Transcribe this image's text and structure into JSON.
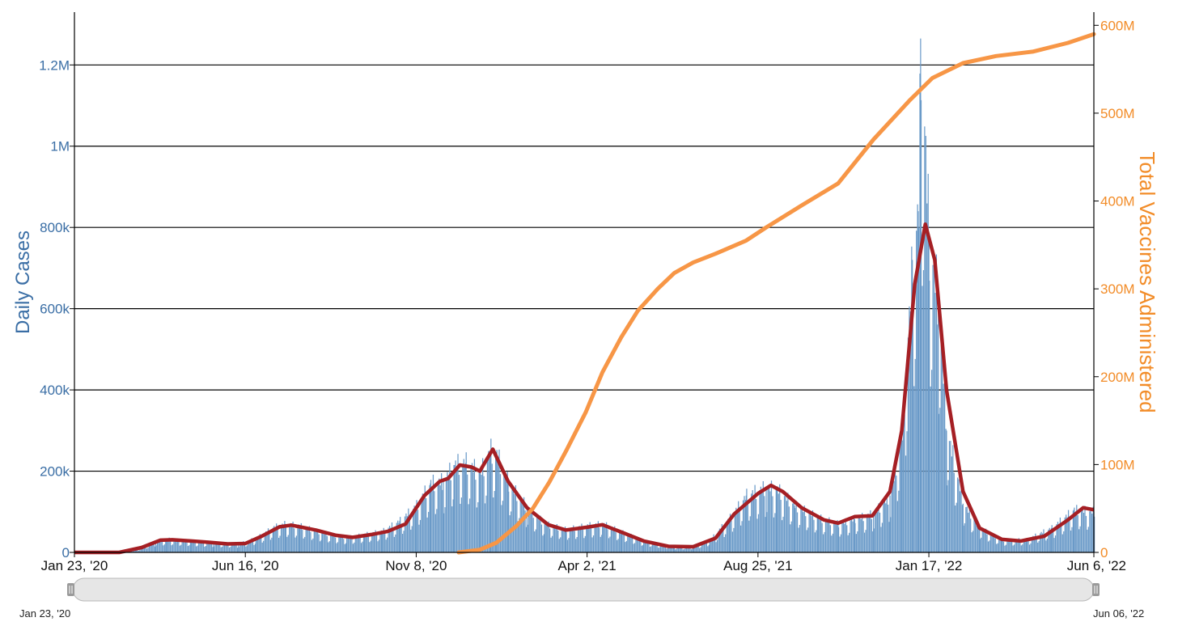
{
  "chart_data": {
    "type": "bar+line",
    "title": "",
    "xlabel": "",
    "ylabel_left": "Daily Cases",
    "ylabel_right": "Total Vaccines Administered",
    "x_range": [
      "2020-01-23",
      "2022-06-06"
    ],
    "y_left_range": [
      0,
      1330000
    ],
    "y_right_range": [
      0,
      615000000
    ],
    "y_left_ticks": [
      {
        "value": 0,
        "label": "0"
      },
      {
        "value": 200000,
        "label": "200k"
      },
      {
        "value": 400000,
        "label": "400k"
      },
      {
        "value": 600000,
        "label": "600k"
      },
      {
        "value": 800000,
        "label": "800k"
      },
      {
        "value": 1000000,
        "label": "1M"
      },
      {
        "value": 1200000,
        "label": "1.2M"
      }
    ],
    "y_right_ticks": [
      {
        "value": 0,
        "label": "0"
      },
      {
        "value": 100000000,
        "label": "100M"
      },
      {
        "value": 200000000,
        "label": "200M"
      },
      {
        "value": 300000000,
        "label": "300M"
      },
      {
        "value": 400000000,
        "label": "400M"
      },
      {
        "value": 500000000,
        "label": "500M"
      },
      {
        "value": 600000000,
        "label": "600M"
      }
    ],
    "x_ticks": [
      {
        "date": "2020-01-23",
        "label": "Jan 23, '20"
      },
      {
        "date": "2020-06-16",
        "label": "Jun 16, '20"
      },
      {
        "date": "2020-11-08",
        "label": "Nov 8, '20"
      },
      {
        "date": "2021-04-02",
        "label": "Apr 2, '21"
      },
      {
        "date": "2021-08-25",
        "label": "Aug 25, '21"
      },
      {
        "date": "2022-01-17",
        "label": "Jan 17, '22"
      },
      {
        "date": "2022-06-06",
        "label": "Jun 6, '22"
      }
    ],
    "gridlines": "horizontal",
    "colors": {
      "daily_bars": "#6a9ac8",
      "seven_day_average": "#a51f24",
      "vaccines": "#f79646",
      "left_axis": "#3a6ea5",
      "right_axis": "#f28c28"
    },
    "series": [
      {
        "type": "bar",
        "axis": "left",
        "points": [
          [
            "2020-01-23",
            0
          ],
          [
            "2020-03-01",
            200
          ],
          [
            "2020-03-15",
            5000
          ],
          [
            "2020-04-01",
            28000
          ],
          [
            "2020-04-10",
            33000
          ],
          [
            "2020-05-01",
            28000
          ],
          [
            "2020-05-20",
            24000
          ],
          [
            "2020-06-10",
            21000
          ],
          [
            "2020-06-25",
            35000
          ],
          [
            "2020-07-10",
            62000
          ],
          [
            "2020-07-20",
            70000
          ],
          [
            "2020-08-01",
            65000
          ],
          [
            "2020-08-20",
            48000
          ],
          [
            "2020-09-10",
            36000
          ],
          [
            "2020-09-25",
            44000
          ],
          [
            "2020-10-10",
            52000
          ],
          [
            "2020-10-25",
            78000
          ],
          [
            "2020-11-08",
            115000
          ],
          [
            "2020-11-20",
            170000
          ],
          [
            "2020-12-01",
            175000
          ],
          [
            "2020-12-10",
            215000
          ],
          [
            "2020-12-20",
            220000
          ],
          [
            "2021-01-01",
            195000
          ],
          [
            "2021-01-10",
            250000
          ],
          [
            "2021-01-15",
            240000
          ],
          [
            "2021-01-25",
            170000
          ],
          [
            "2021-02-10",
            110000
          ],
          [
            "2021-02-25",
            70000
          ],
          [
            "2021-03-15",
            56000
          ],
          [
            "2021-04-02",
            66000
          ],
          [
            "2021-04-15",
            70000
          ],
          [
            "2021-05-01",
            50000
          ],
          [
            "2021-05-20",
            28000
          ],
          [
            "2021-06-15",
            13000
          ],
          [
            "2021-07-01",
            14000
          ],
          [
            "2021-07-15",
            30000
          ],
          [
            "2021-08-01",
            85000
          ],
          [
            "2021-08-15",
            140000
          ],
          [
            "2021-09-01",
            160000
          ],
          [
            "2021-09-10",
            155000
          ],
          [
            "2021-09-25",
            115000
          ],
          [
            "2021-10-15",
            85000
          ],
          [
            "2021-11-01",
            70000
          ],
          [
            "2021-11-15",
            82000
          ],
          [
            "2021-12-01",
            95000
          ],
          [
            "2021-12-15",
            140000
          ],
          [
            "2021-12-25",
            290000
          ],
          [
            "2022-01-03",
            720000
          ],
          [
            "2022-01-08",
            840000
          ],
          [
            "2022-01-10",
            1265000
          ],
          [
            "2022-01-17",
            760000
          ],
          [
            "2022-01-25",
            620000
          ],
          [
            "2022-02-01",
            300000
          ],
          [
            "2022-02-15",
            120000
          ],
          [
            "2022-03-01",
            60000
          ],
          [
            "2022-03-20",
            30000
          ],
          [
            "2022-04-10",
            32000
          ],
          [
            "2022-05-01",
            60000
          ],
          [
            "2022-05-20",
            105000
          ],
          [
            "2022-06-06",
            100000
          ]
        ]
      },
      {
        "name": "",
        "type": "line",
        "axis": "left",
        "points": [
          [
            "2020-01-23",
            0
          ],
          [
            "2020-03-01",
            0
          ],
          [
            "2020-03-20",
            12000
          ],
          [
            "2020-04-05",
            30000
          ],
          [
            "2020-04-15",
            31000
          ],
          [
            "2020-05-01",
            28000
          ],
          [
            "2020-05-15",
            25000
          ],
          [
            "2020-06-01",
            21000
          ],
          [
            "2020-06-16",
            22000
          ],
          [
            "2020-06-30",
            40000
          ],
          [
            "2020-07-15",
            63000
          ],
          [
            "2020-07-25",
            67000
          ],
          [
            "2020-08-15",
            55000
          ],
          [
            "2020-09-01",
            42000
          ],
          [
            "2020-09-15",
            37000
          ],
          [
            "2020-10-01",
            44000
          ],
          [
            "2020-10-15",
            52000
          ],
          [
            "2020-10-30",
            70000
          ],
          [
            "2020-11-15",
            140000
          ],
          [
            "2020-11-28",
            175000
          ],
          [
            "2020-12-05",
            182000
          ],
          [
            "2020-12-15",
            215000
          ],
          [
            "2020-12-25",
            210000
          ],
          [
            "2021-01-01",
            200000
          ],
          [
            "2021-01-12",
            254000
          ],
          [
            "2021-01-25",
            175000
          ],
          [
            "2021-02-10",
            110000
          ],
          [
            "2021-02-28",
            68000
          ],
          [
            "2021-03-15",
            55000
          ],
          [
            "2021-04-02",
            62000
          ],
          [
            "2021-04-15",
            68000
          ],
          [
            "2021-05-01",
            50000
          ],
          [
            "2021-05-20",
            28000
          ],
          [
            "2021-06-10",
            15000
          ],
          [
            "2021-07-01",
            14000
          ],
          [
            "2021-07-20",
            35000
          ],
          [
            "2021-08-05",
            95000
          ],
          [
            "2021-08-25",
            145000
          ],
          [
            "2021-09-05",
            165000
          ],
          [
            "2021-09-15",
            150000
          ],
          [
            "2021-10-01",
            110000
          ],
          [
            "2021-10-20",
            80000
          ],
          [
            "2021-11-01",
            72000
          ],
          [
            "2021-11-15",
            88000
          ],
          [
            "2021-11-30",
            90000
          ],
          [
            "2021-12-15",
            150000
          ],
          [
            "2021-12-25",
            300000
          ],
          [
            "2022-01-05",
            660000
          ],
          [
            "2022-01-14",
            808000
          ],
          [
            "2022-01-22",
            720000
          ],
          [
            "2022-02-01",
            400000
          ],
          [
            "2022-02-15",
            150000
          ],
          [
            "2022-03-01",
            60000
          ],
          [
            "2022-03-20",
            32000
          ],
          [
            "2022-04-05",
            28000
          ],
          [
            "2022-04-25",
            40000
          ],
          [
            "2022-05-15",
            80000
          ],
          [
            "2022-05-28",
            110000
          ],
          [
            "2022-06-06",
            105000
          ]
        ]
      },
      {
        "name": "",
        "type": "line",
        "axis": "right",
        "points": [
          [
            "2020-12-14",
            0
          ],
          [
            "2021-01-01",
            3000000
          ],
          [
            "2021-01-15",
            11000000
          ],
          [
            "2021-02-01",
            30000000
          ],
          [
            "2021-02-15",
            50000000
          ],
          [
            "2021-03-01",
            80000000
          ],
          [
            "2021-03-15",
            115000000
          ],
          [
            "2021-04-01",
            160000000
          ],
          [
            "2021-04-15",
            205000000
          ],
          [
            "2021-05-01",
            245000000
          ],
          [
            "2021-05-15",
            275000000
          ],
          [
            "2021-06-01",
            300000000
          ],
          [
            "2021-06-15",
            318000000
          ],
          [
            "2021-07-01",
            330000000
          ],
          [
            "2021-07-20",
            340000000
          ],
          [
            "2021-08-15",
            355000000
          ],
          [
            "2021-09-01",
            370000000
          ],
          [
            "2021-10-01",
            395000000
          ],
          [
            "2021-11-01",
            420000000
          ],
          [
            "2021-12-01",
            470000000
          ],
          [
            "2022-01-01",
            515000000
          ],
          [
            "2022-01-20",
            540000000
          ],
          [
            "2022-02-15",
            557000000
          ],
          [
            "2022-03-15",
            565000000
          ],
          [
            "2022-04-15",
            570000000
          ],
          [
            "2022-05-15",
            580000000
          ],
          [
            "2022-06-06",
            590000000
          ]
        ]
      }
    ],
    "navigator": {
      "start_label": "Jan 23, '20",
      "end_label": "Jun 06, '22"
    }
  }
}
